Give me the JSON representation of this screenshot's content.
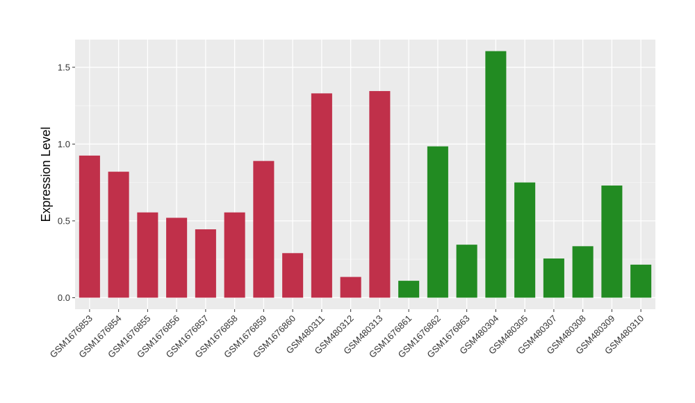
{
  "chart_data": {
    "type": "bar",
    "title": "",
    "xlabel": "",
    "ylabel": "Expression Level",
    "ylim": [
      -0.075,
      1.68
    ],
    "yticks": [
      0.0,
      0.5,
      1.0,
      1.5
    ],
    "ytick_labels": [
      "0.0",
      "0.5",
      "1.0",
      "1.5"
    ],
    "grid": true,
    "legend": "none",
    "background_color": "#ebebeb",
    "categories": [
      "GSM1676853",
      "GSM1676854",
      "GSM1676855",
      "GSM1676856",
      "GSM1676857",
      "GSM1676858",
      "GSM1676859",
      "GSM1676860",
      "GSM480311",
      "GSM480312",
      "GSM480313",
      "GSM1676861",
      "GSM1676862",
      "GSM1676863",
      "GSM480304",
      "GSM480305",
      "GSM480307",
      "GSM480308",
      "GSM480309",
      "GSM480310"
    ],
    "values": [
      0.925,
      0.82,
      0.555,
      0.52,
      0.445,
      0.555,
      0.89,
      0.29,
      1.33,
      0.135,
      1.345,
      0.11,
      0.985,
      0.345,
      1.605,
      0.75,
      0.255,
      0.335,
      0.73,
      0.215
    ],
    "colors": [
      "#c0304a",
      "#c0304a",
      "#c0304a",
      "#c0304a",
      "#c0304a",
      "#c0304a",
      "#c0304a",
      "#c0304a",
      "#c0304a",
      "#c0304a",
      "#c0304a",
      "#228b22",
      "#228b22",
      "#228b22",
      "#228b22",
      "#228b22",
      "#228b22",
      "#228b22",
      "#228b22",
      "#228b22"
    ]
  }
}
